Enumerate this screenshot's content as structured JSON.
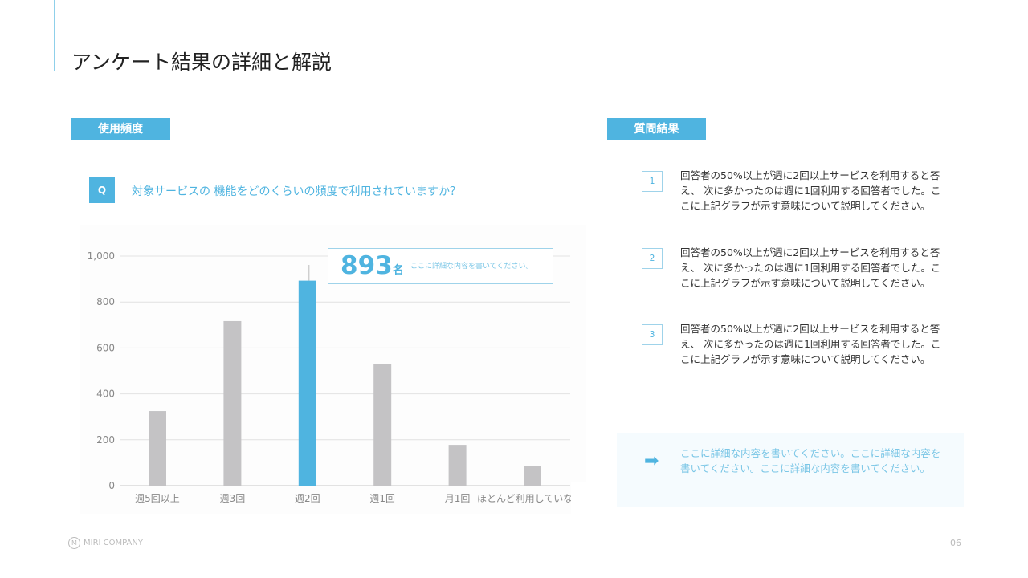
{
  "title": "アンケート結果の詳細と解説",
  "left_tag": "使用頻度",
  "right_tag": "質問結果",
  "question": {
    "badge": "Q",
    "text": "対象サービスの 機能をどのくらいの頻度で利用されていますか？"
  },
  "callout": {
    "value": "893",
    "unit": "名",
    "text": "ここに詳細な内容を書いてください。"
  },
  "results": [
    {
      "num": "1",
      "text": "回答者の50%以上が週に2回以上サービスを利用すると答え、 次に多かったのは週に1回利用する回答者でした。ここに上記グラフが示す意味について説明してください。"
    },
    {
      "num": "2",
      "text": "回答者の50%以上が週に2回以上サービスを利用すると答え、 次に多かったのは週に1回利用する回答者でした。ここに上記グラフが示す意味について説明してください。"
    },
    {
      "num": "3",
      "text": "回答者の50%以上が週に2回以上サービスを利用すると答え、 次に多かったのは週に1回利用する回答者でした。ここに上記グラフが示す意味について説明してください。"
    }
  ],
  "note": "ここに詳細な内容を書いてください。ここに詳細な内容を書いてください。ここに詳細な内容を書いてください。",
  "footer": {
    "logo": "MIRI COMPANY",
    "logo_mark": "M",
    "page": "06"
  },
  "colors": {
    "accent": "#4fb4e0",
    "bar": "#c4c3c5"
  },
  "chart_data": {
    "type": "bar",
    "categories": [
      "週5回以上",
      "週3回",
      "週2回",
      "週1回",
      "月1回",
      "ほとんど利用していな"
    ],
    "values": [
      325,
      717,
      893,
      528,
      178,
      87
    ],
    "highlight_index": 2,
    "ylim": [
      0,
      1000
    ],
    "yticks": [
      0,
      200,
      400,
      600,
      800,
      1000
    ],
    "ytick_labels": [
      "0",
      "200",
      "400",
      "600",
      "800",
      "1,000"
    ],
    "grid": true
  }
}
